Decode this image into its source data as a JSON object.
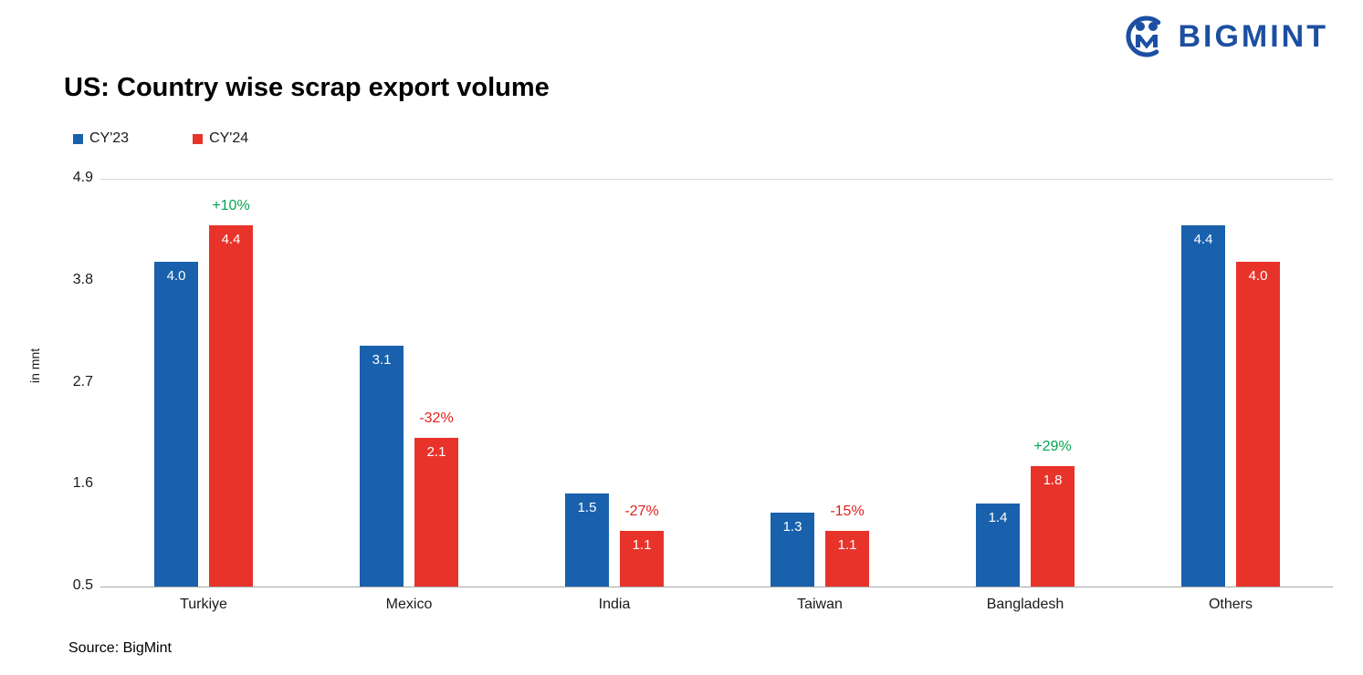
{
  "header": {
    "brand": "BIGMINT"
  },
  "title": "US: Country wise scrap export volume",
  "source": "Source: BigMint",
  "chart_data": {
    "type": "bar",
    "title": "US: Country wise scrap export volume",
    "categories": [
      "Turkiye",
      "Mexico",
      "India",
      "Taiwan",
      "Bangladesh",
      "Others"
    ],
    "series": [
      {
        "name": "CY'23",
        "color": "#1961ac",
        "values": [
          4.0,
          3.1,
          1.5,
          1.3,
          1.4,
          4.4
        ]
      },
      {
        "name": "CY'24",
        "color": "#e8332b",
        "values": [
          4.4,
          2.1,
          1.1,
          1.1,
          1.8,
          4.0
        ]
      }
    ],
    "pct_change": [
      {
        "label": "+10%",
        "color": "#00a651"
      },
      {
        "label": "-32%",
        "color": "#e0201c"
      },
      {
        "label": "-27%",
        "color": "#e0201c"
      },
      {
        "label": "-15%",
        "color": "#e0201c"
      },
      {
        "label": "+29%",
        "color": "#00a651"
      },
      {
        "label": "",
        "color": ""
      }
    ],
    "xlabel": "",
    "ylabel": "in mnt",
    "yticks": [
      0.5,
      1.6,
      2.7,
      3.8,
      4.9
    ],
    "ylim": [
      0.5,
      4.9
    ],
    "value_labels": true,
    "legend_position": "top-left",
    "grid": false
  }
}
